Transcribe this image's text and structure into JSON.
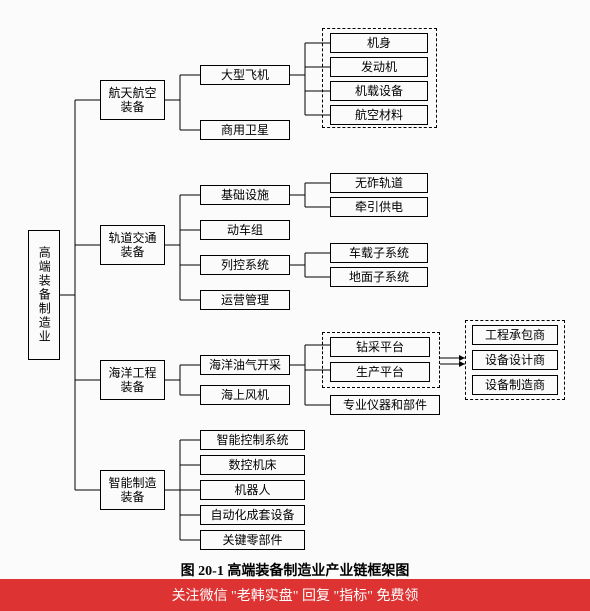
{
  "diagram": {
    "type": "tree",
    "root": {
      "label": "高端装备制造业"
    },
    "level2": [
      {
        "id": "aero",
        "label": "航天航空\n装备"
      },
      {
        "id": "rail",
        "label": "轨道交通\n装备"
      },
      {
        "id": "ocean",
        "label": "海洋工程\n装备"
      },
      {
        "id": "smart",
        "label": "智能制造\n装备"
      }
    ],
    "aero_children": [
      "大型飞机",
      "商用卫星"
    ],
    "aero_plane_parts": [
      "机身",
      "发动机",
      "机载设备",
      "航空材料"
    ],
    "rail_children": [
      "基础设施",
      "动车组",
      "列控系统",
      "运营管理"
    ],
    "rail_infra_parts": [
      "无砟轨道",
      "牵引供电"
    ],
    "rail_ctrl_parts": [
      "车载子系统",
      "地面子系统"
    ],
    "ocean_children": [
      "海洋油气开采",
      "海上风机"
    ],
    "ocean_oil_parts": [
      "钻采平台",
      "生产平台",
      "专业仪器和部件"
    ],
    "ocean_contractors": [
      "工程承包商",
      "设备设计商",
      "设备制造商"
    ],
    "smart_children": [
      "智能控制系统",
      "数控机床",
      "机器人",
      "自动化成套设备",
      "关键零部件"
    ],
    "caption": "图 20-1  高端装备制造业产业链框架图",
    "banner": "关注微信 \"老韩实盘\" 回复 \"指标\" 免费领",
    "colors": {
      "bg": "#fbfbfb",
      "border": "#000000",
      "banner_bg": "#d33333",
      "banner_fg": "#ffffff"
    },
    "fontsize_box": 12,
    "fontsize_caption": 14
  }
}
